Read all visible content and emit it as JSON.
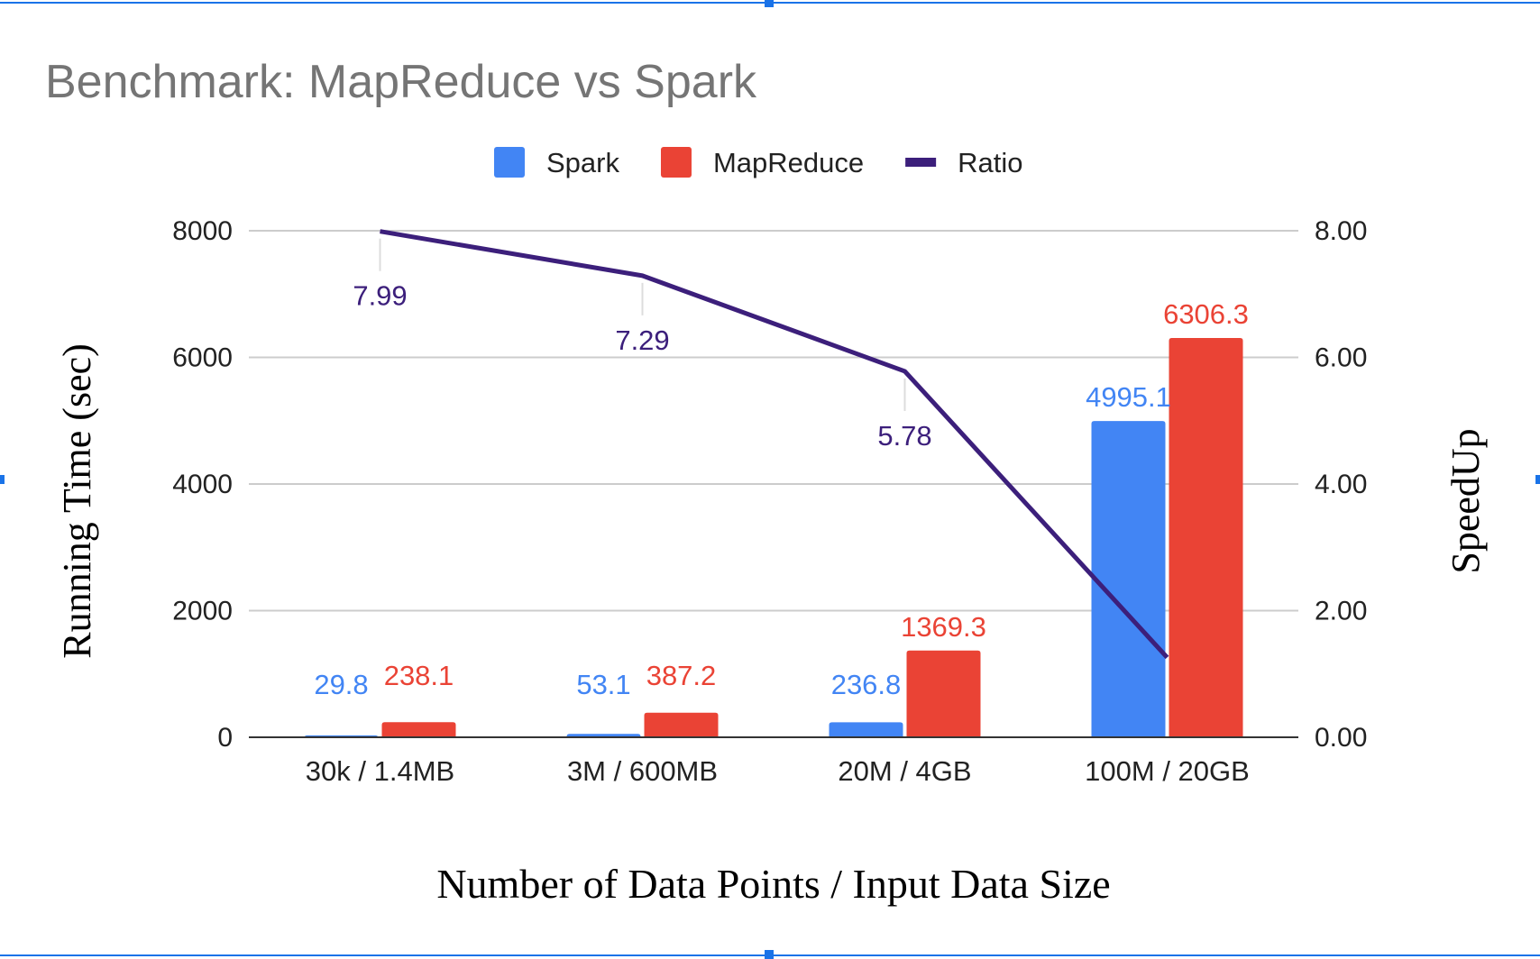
{
  "chart_data": {
    "type": "bar",
    "title": "Benchmark: MapReduce vs Spark",
    "xlabel": "Number of Data Points / Input Data Size",
    "ylabel": "Running Time (sec)",
    "y2label": "SpeedUp",
    "categories": [
      "30k / 1.4MB",
      "3M / 600MB",
      "20M / 4GB",
      "100M / 20GB"
    ],
    "ylim": [
      0,
      8000
    ],
    "y_ticks": [
      "0",
      "2000",
      "4000",
      "6000",
      "8000"
    ],
    "y2lim": [
      0,
      8
    ],
    "y2_ticks": [
      "0.00",
      "2.00",
      "4.00",
      "6.00",
      "8.00"
    ],
    "grid": true,
    "legend_position": "top-center",
    "series": [
      {
        "name": "Spark",
        "type": "bar",
        "axis": "left",
        "color": "#4285f4",
        "values": [
          29.8,
          53.1,
          236.8,
          4995.1
        ],
        "labels": [
          "29.8",
          "53.1",
          "236.8",
          "4995.1"
        ]
      },
      {
        "name": "MapReduce",
        "type": "bar",
        "axis": "left",
        "color": "#ea4335",
        "values": [
          238.1,
          387.2,
          1369.3,
          6306.3
        ],
        "labels": [
          "238.1",
          "387.2",
          "1369.3",
          "6306.3"
        ]
      },
      {
        "name": "Ratio",
        "type": "line",
        "axis": "right",
        "color": "#3c1f7b",
        "values": [
          7.99,
          7.29,
          5.78,
          1.26
        ],
        "labels": [
          "7.99",
          "7.29",
          "5.78",
          ""
        ]
      }
    ]
  }
}
